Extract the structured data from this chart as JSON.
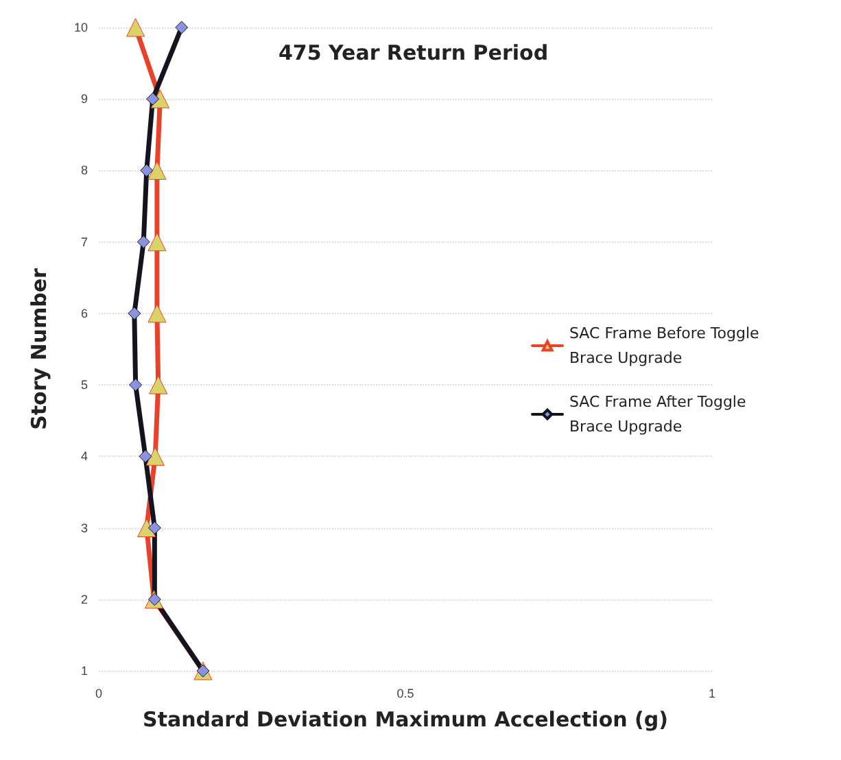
{
  "chart_data": {
    "type": "line",
    "title": "475 Year Return Period",
    "xlabel": "Standard Deviation Maximum Accelection (g)",
    "ylabel": "Story Number",
    "xlim": [
      0,
      1
    ],
    "xticks": [
      0,
      0.5,
      1
    ],
    "ylim": [
      1,
      10
    ],
    "yticks": [
      1,
      2,
      3,
      4,
      5,
      6,
      7,
      8,
      9,
      10
    ],
    "grid": "y",
    "legend": "right",
    "series": [
      {
        "name": "SAC Frame Before Toggle Brace Upgrade",
        "color": "#e8432a",
        "marker": "triangle",
        "x": [
          0.17,
          0.09,
          0.078,
          0.092,
          0.097,
          0.095,
          0.095,
          0.095,
          0.1,
          0.06
        ],
        "values": [
          1,
          2,
          3,
          4,
          5,
          6,
          7,
          8,
          9,
          10
        ]
      },
      {
        "name": "SAC Frame After Toggle Brace Upgrade",
        "color": "#141420",
        "marker": "diamond",
        "x": [
          0.17,
          0.091,
          0.091,
          0.076,
          0.06,
          0.058,
          0.073,
          0.078,
          0.088,
          0.135
        ],
        "values": [
          1,
          2,
          3,
          4,
          5,
          6,
          7,
          8,
          9,
          10
        ]
      }
    ]
  }
}
